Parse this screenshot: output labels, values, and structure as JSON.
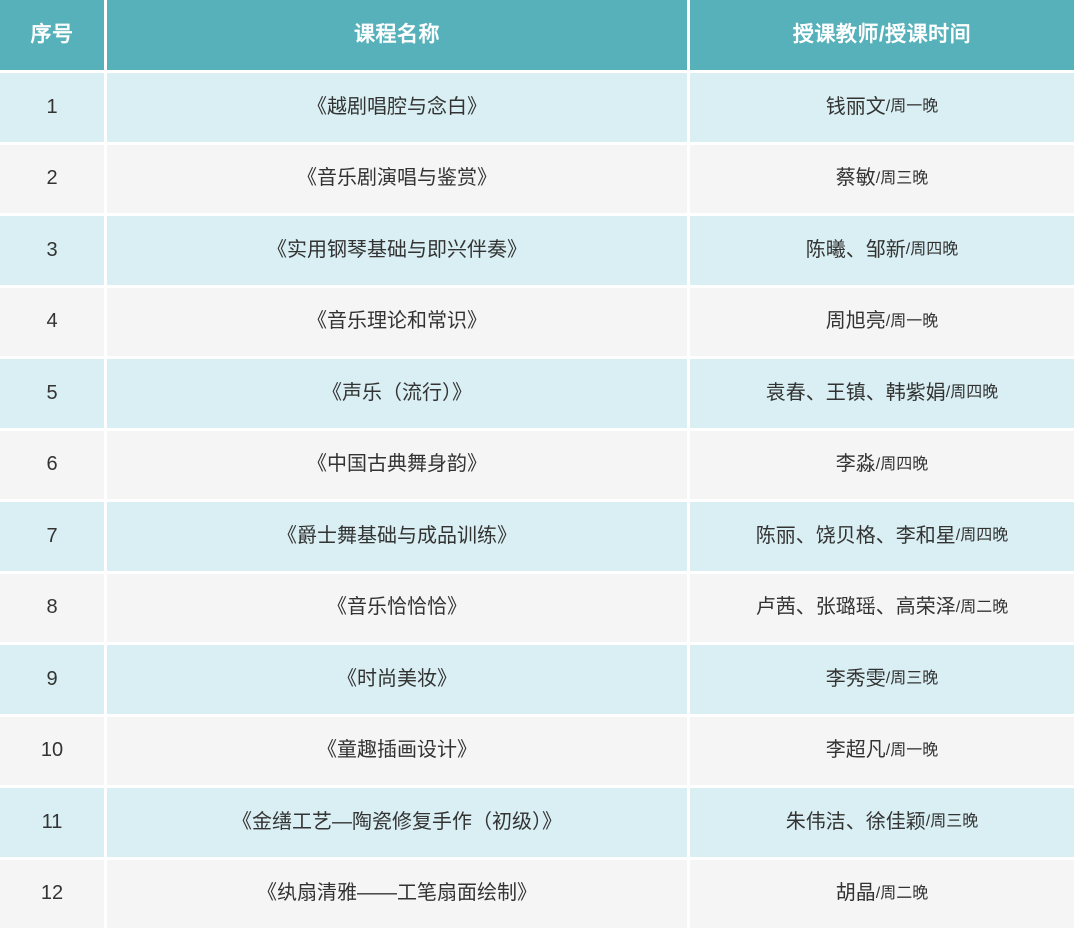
{
  "table": {
    "columns": [
      {
        "key": "index",
        "label": "序号"
      },
      {
        "key": "course",
        "label": "课程名称"
      },
      {
        "key": "teacher_time",
        "label": "授课教师/授课时间"
      }
    ],
    "rows": [
      {
        "index": "1",
        "course": "《越剧唱腔与念白》",
        "teacher": "钱丽文",
        "time": "/周一晚"
      },
      {
        "index": "2",
        "course": "《音乐剧演唱与鉴赏》",
        "teacher": "蔡敏",
        "time": "/周三晚"
      },
      {
        "index": "3",
        "course": "《实用钢琴基础与即兴伴奏》",
        "teacher": "陈曦、邹新",
        "time": "/周四晚"
      },
      {
        "index": "4",
        "course": "《音乐理论和常识》",
        "teacher": "周旭亮",
        "time": "/周一晚"
      },
      {
        "index": "5",
        "course": "《声乐（流行）》",
        "teacher": "袁春、王镇、韩紫娟",
        "time": "/周四晚"
      },
      {
        "index": "6",
        "course": "《中国古典舞身韵》",
        "teacher": "李淼",
        "time": "/周四晚"
      },
      {
        "index": "7",
        "course": "《爵士舞基础与成品训练》",
        "teacher": "陈丽、饶贝格、李和星",
        "time": "/周四晚"
      },
      {
        "index": "8",
        "course": "《音乐恰恰恰》",
        "teacher": "卢茜、张璐瑶、高荣泽",
        "time": "/周二晚"
      },
      {
        "index": "9",
        "course": "《时尚美妆》",
        "teacher": "李秀雯",
        "time": "/周三晚"
      },
      {
        "index": "10",
        "course": "《童趣插画设计》",
        "teacher": "李超凡",
        "time": "/周一晚"
      },
      {
        "index": "11",
        "course": "《金缮工艺—陶瓷修复手作（初级）》",
        "teacher": "朱伟洁、徐佳颖",
        "time": "/周三晚"
      },
      {
        "index": "12",
        "course": "《纨扇清雅——工笔扇面绘制》",
        "teacher": "胡晶",
        "time": "/周二晚"
      }
    ]
  },
  "colors": {
    "header_bg": "#56B1BA",
    "header_text": "#FFFFFF",
    "row_odd_bg": "#D9EFF3",
    "row_even_bg": "#F5F5F5",
    "body_text": "#333333",
    "gap": "#FFFFFF"
  }
}
